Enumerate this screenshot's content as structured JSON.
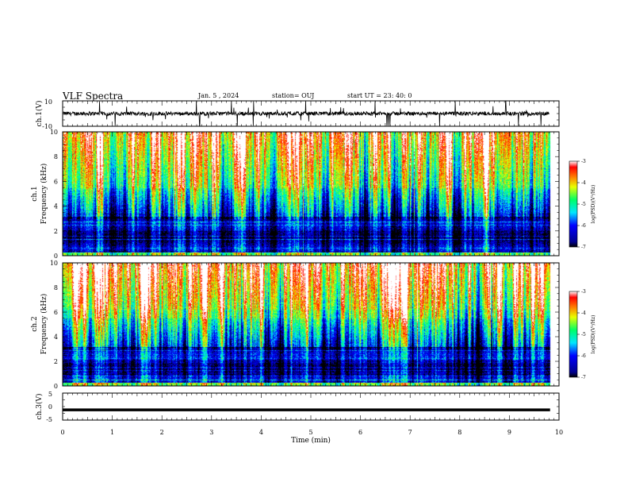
{
  "header": {
    "title": "VLF Spectra",
    "date": "Jan. 5 , 2024",
    "station": "station= OUJ",
    "start": "start UT = 23: 40: 0"
  },
  "chart_data": [
    {
      "type": "line",
      "name": "ch1-waveform",
      "ylabel": "ch.1(V)",
      "ylim": [
        -10,
        10
      ],
      "yticklabels": [
        "10",
        "-10"
      ],
      "baseline": 0,
      "color": "#000000"
    },
    {
      "type": "heatmap",
      "name": "ch1-spectrogram",
      "ylabel": "ch.1\nFrequency (kHz)",
      "ylabel_lines": [
        "ch.1",
        "Frequency (kHz)"
      ],
      "ylim": [
        0,
        10
      ],
      "yticks": [
        0,
        2,
        4,
        6,
        8,
        10
      ],
      "colorbar": {
        "label": "log(PSD)(V²/Hz)",
        "range": [
          -7,
          -3
        ],
        "ticks": [
          "-3",
          "-4",
          "-5",
          "-6",
          "-7"
        ]
      }
    },
    {
      "type": "heatmap",
      "name": "ch2-spectrogram",
      "ylabel": "ch.2\nFrequency (kHz)",
      "ylabel_lines": [
        "ch.2",
        "Frequency (kHz)"
      ],
      "ylim": [
        0,
        10
      ],
      "yticks": [
        0,
        2,
        4,
        6,
        8,
        10
      ],
      "colorbar": {
        "label": "log(PSD)(V²/Hz)",
        "range": [
          -7,
          -3
        ],
        "ticks": [
          "-3",
          "-4",
          "-5",
          "-6",
          "-7"
        ]
      }
    },
    {
      "type": "line",
      "name": "ch3-trace",
      "ylabel": "ch.3(V)",
      "ylim": [
        -5,
        5
      ],
      "yticklabels": [
        "5",
        "0",
        "-5"
      ],
      "value": -1.2,
      "color": "#000000"
    }
  ],
  "xaxis": {
    "label": "Time (min)",
    "range": [
      0,
      10
    ],
    "ticks": [
      "0",
      "1",
      "2",
      "3",
      "4",
      "5",
      "6",
      "7",
      "8",
      "9",
      "10"
    ],
    "data_end": 9.82
  }
}
